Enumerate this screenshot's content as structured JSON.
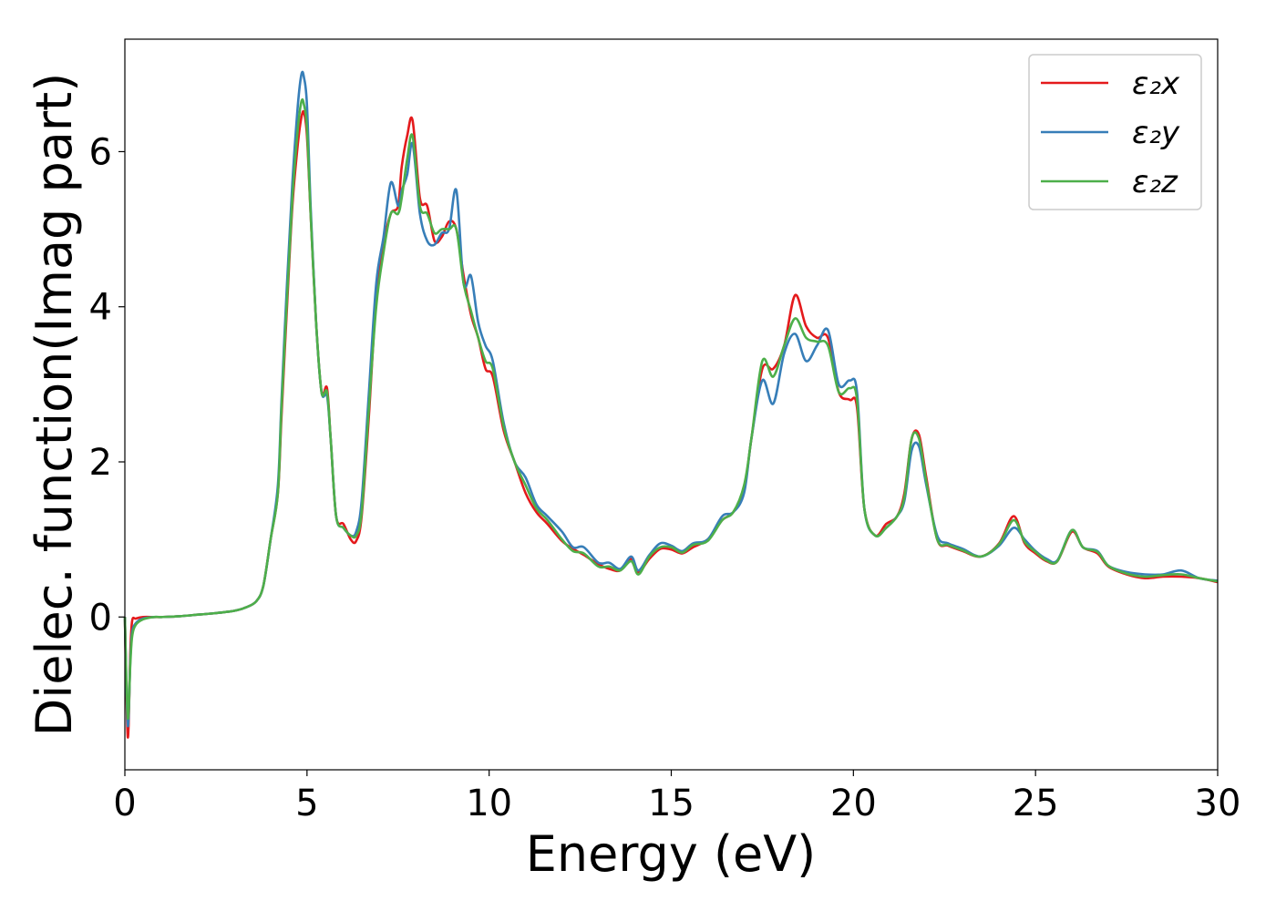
{
  "chart_data": {
    "type": "line",
    "title": "",
    "xlabel": "Energy (eV)",
    "ylabel": "Dielec. function(Imag part)",
    "xlim": [
      0,
      30
    ],
    "ylim": [
      -1.97,
      7.45
    ],
    "xticks": [
      0,
      5,
      10,
      15,
      20,
      25,
      30
    ],
    "yticks": [
      0,
      2,
      4,
      6
    ],
    "grid": false,
    "legend_position": "top-right",
    "x": [
      0,
      0.08,
      0.15,
      0.2,
      0.3,
      0.5,
      0.8,
      1.0,
      1.5,
      2.0,
      2.5,
      3.0,
      3.3,
      3.6,
      3.8,
      4.0,
      4.2,
      4.3,
      4.45,
      4.6,
      4.75,
      4.85,
      4.92,
      5.0,
      5.1,
      5.25,
      5.4,
      5.55,
      5.65,
      5.8,
      6.0,
      6.2,
      6.35,
      6.5,
      6.7,
      6.9,
      7.1,
      7.3,
      7.5,
      7.6,
      7.75,
      7.9,
      8.1,
      8.3,
      8.5,
      8.7,
      8.9,
      9.1,
      9.3,
      9.5,
      9.7,
      9.9,
      10.1,
      10.4,
      10.7,
      11.0,
      11.3,
      11.6,
      12.0,
      12.3,
      12.6,
      13.0,
      13.3,
      13.6,
      13.9,
      14.1,
      14.4,
      14.7,
      15.0,
      15.3,
      15.6,
      16.0,
      16.4,
      16.7,
      17.0,
      17.2,
      17.5,
      17.8,
      18.1,
      18.4,
      18.7,
      19.0,
      19.3,
      19.6,
      19.9,
      20.1,
      20.3,
      20.6,
      20.9,
      21.2,
      21.4,
      21.6,
      21.8,
      22.0,
      22.3,
      22.6,
      23.0,
      23.5,
      24.0,
      24.4,
      24.7,
      25.0,
      25.3,
      25.6,
      26.0,
      26.3,
      26.7,
      27.0,
      27.5,
      28.0,
      28.5,
      29.0,
      29.5,
      30.0
    ],
    "series": [
      {
        "name": "ε₂x",
        "color": "#e41a1c",
        "values": [
          0.0,
          -1.55,
          -0.45,
          -0.05,
          -0.02,
          0.0,
          0.0,
          0.0,
          0.01,
          0.03,
          0.05,
          0.08,
          0.12,
          0.2,
          0.4,
          1.0,
          1.6,
          2.6,
          4.0,
          5.3,
          6.1,
          6.45,
          6.5,
          6.2,
          5.2,
          3.8,
          2.9,
          2.95,
          2.3,
          1.3,
          1.2,
          1.0,
          0.98,
          1.3,
          2.6,
          4.1,
          4.8,
          5.2,
          5.3,
          5.8,
          6.2,
          6.4,
          5.4,
          5.3,
          4.85,
          4.9,
          5.1,
          5.0,
          4.4,
          3.9,
          3.6,
          3.2,
          3.1,
          2.4,
          2.0,
          1.6,
          1.35,
          1.2,
          0.98,
          0.88,
          0.8,
          0.68,
          0.62,
          0.6,
          0.75,
          0.58,
          0.75,
          0.88,
          0.87,
          0.82,
          0.9,
          1.0,
          1.25,
          1.35,
          1.65,
          2.3,
          3.2,
          3.2,
          3.5,
          4.15,
          3.75,
          3.6,
          3.6,
          2.9,
          2.8,
          2.7,
          1.4,
          1.05,
          1.2,
          1.3,
          1.6,
          2.3,
          2.35,
          1.8,
          1.0,
          0.92,
          0.85,
          0.78,
          0.95,
          1.3,
          0.95,
          0.82,
          0.72,
          0.72,
          1.1,
          0.9,
          0.82,
          0.65,
          0.55,
          0.5,
          0.52,
          0.52,
          0.5,
          0.45
        ]
      },
      {
        "name": "ε₂y",
        "color": "#377eb8",
        "values": [
          0.0,
          -1.4,
          -0.55,
          -0.2,
          -0.08,
          -0.02,
          0.0,
          0.0,
          0.01,
          0.03,
          0.05,
          0.08,
          0.12,
          0.2,
          0.4,
          1.0,
          1.7,
          2.8,
          4.3,
          5.6,
          6.6,
          7.0,
          6.95,
          6.6,
          5.3,
          3.8,
          2.9,
          2.85,
          2.3,
          1.3,
          1.15,
          1.05,
          1.1,
          1.5,
          2.9,
          4.3,
          4.9,
          5.6,
          5.3,
          5.5,
          5.7,
          6.1,
          5.2,
          4.85,
          4.8,
          4.95,
          5.0,
          5.5,
          4.3,
          4.4,
          3.8,
          3.5,
          3.3,
          2.5,
          2.0,
          1.8,
          1.45,
          1.3,
          1.1,
          0.9,
          0.9,
          0.7,
          0.7,
          0.62,
          0.78,
          0.6,
          0.8,
          0.95,
          0.92,
          0.85,
          0.95,
          1.0,
          1.3,
          1.35,
          1.6,
          2.3,
          3.05,
          2.75,
          3.4,
          3.65,
          3.3,
          3.5,
          3.7,
          3.0,
          3.05,
          2.9,
          1.4,
          1.05,
          1.15,
          1.3,
          1.5,
          2.15,
          2.2,
          1.7,
          1.05,
          0.95,
          0.88,
          0.78,
          0.92,
          1.15,
          1.0,
          0.85,
          0.75,
          0.73,
          1.12,
          0.9,
          0.85,
          0.66,
          0.58,
          0.55,
          0.55,
          0.6,
          0.5,
          0.47
        ]
      },
      {
        "name": "ε₂z",
        "color": "#4daf4a",
        "values": [
          0.0,
          -1.3,
          -0.6,
          -0.25,
          -0.1,
          -0.03,
          0.0,
          0.0,
          0.01,
          0.03,
          0.05,
          0.08,
          0.12,
          0.2,
          0.4,
          1.0,
          1.6,
          2.7,
          4.1,
          5.4,
          6.3,
          6.65,
          6.6,
          6.3,
          5.2,
          3.8,
          2.9,
          2.9,
          2.3,
          1.3,
          1.15,
          1.05,
          1.05,
          1.35,
          2.7,
          4.0,
          4.7,
          5.2,
          5.2,
          5.4,
          5.9,
          6.2,
          5.3,
          5.2,
          4.95,
          5.0,
          5.0,
          5.0,
          4.3,
          3.95,
          3.6,
          3.3,
          3.2,
          2.45,
          2.0,
          1.7,
          1.4,
          1.25,
          1.0,
          0.85,
          0.82,
          0.65,
          0.65,
          0.6,
          0.72,
          0.55,
          0.78,
          0.9,
          0.9,
          0.83,
          0.93,
          0.98,
          1.25,
          1.35,
          1.7,
          2.3,
          3.3,
          3.1,
          3.5,
          3.85,
          3.6,
          3.55,
          3.5,
          2.9,
          2.95,
          2.8,
          1.4,
          1.05,
          1.15,
          1.3,
          1.55,
          2.3,
          2.3,
          1.75,
          1.0,
          0.93,
          0.86,
          0.78,
          0.94,
          1.25,
          0.97,
          0.84,
          0.73,
          0.72,
          1.12,
          0.9,
          0.84,
          0.66,
          0.56,
          0.52,
          0.54,
          0.55,
          0.5,
          0.46
        ]
      }
    ]
  }
}
